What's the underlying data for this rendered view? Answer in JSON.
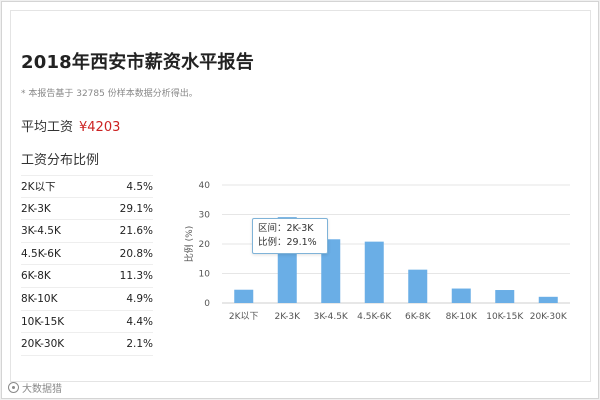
{
  "report": {
    "title": "2018年西安市薪资水平报告",
    "note": "* 本报告基于 32785 份样本数据分析得出。",
    "avg_label": "平均工资",
    "avg_value": "¥4203",
    "dist_title": "工资分布比例"
  },
  "distribution": [
    {
      "range": "2K以下",
      "pct": "4.5%"
    },
    {
      "range": "2K-3K",
      "pct": "29.1%"
    },
    {
      "range": "3K-4.5K",
      "pct": "21.6%"
    },
    {
      "range": "4.5K-6K",
      "pct": "20.8%"
    },
    {
      "range": "6K-8K",
      "pct": "11.3%"
    },
    {
      "range": "8K-10K",
      "pct": "4.9%"
    },
    {
      "range": "10K-15K",
      "pct": "4.4%"
    },
    {
      "range": "20K-30K",
      "pct": "2.1%"
    }
  ],
  "chart_data": {
    "type": "bar",
    "categories": [
      "2K以下",
      "2K-3K",
      "3K-4.5K",
      "4.5K-6K",
      "6K-8K",
      "8K-10K",
      "10K-15K",
      "20K-30K"
    ],
    "values": [
      4.5,
      29.1,
      21.6,
      20.8,
      11.3,
      4.9,
      4.4,
      2.1
    ],
    "title": "",
    "xlabel": "",
    "ylabel": "比例 (%)",
    "ylim": [
      0,
      40
    ],
    "yticks": [
      0,
      10,
      20,
      30,
      40
    ],
    "grid": true,
    "bar_color": "#6aaee6",
    "tooltip": {
      "range_label": "区间：2K-3K",
      "ratio_label": "比例：29.1%"
    }
  },
  "watermark": "大数据猎"
}
